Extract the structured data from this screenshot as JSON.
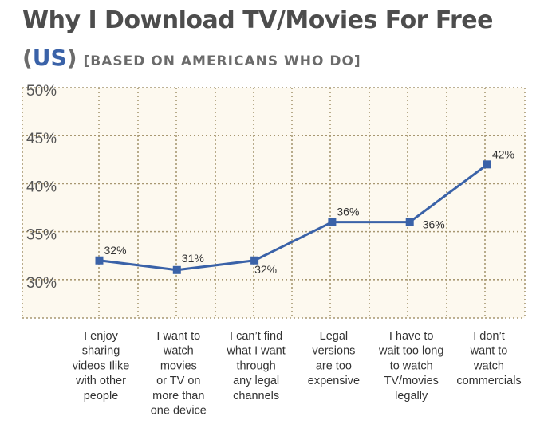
{
  "title": "Why I Download TV/Movies For Free",
  "subtitle": {
    "open_paren": "(",
    "region": "US",
    "close_paren": ")",
    "note": "[BASED ON AMERICANS WHO DO]"
  },
  "colors": {
    "series": "#3a62a8",
    "plot_background": "#fdf9ef",
    "grid": "#a89872",
    "title": "#4d4d4d"
  },
  "chart_data": {
    "type": "line",
    "categories": [
      "I enjoy sharing videos Ilike with other people",
      "I want to watch movies or TV on more than one device",
      "I can’t find what I want through any legal channels",
      "Legal versions are too expensive",
      "I have to wait too long to watch TV/movies legally",
      "I don’t want to watch commercials"
    ],
    "category_lines": [
      [
        "I enjoy",
        "sharing",
        "videos Ilike",
        "with other",
        "people"
      ],
      [
        "I want to",
        "watch",
        "movies",
        "or TV on",
        "more than",
        "one device"
      ],
      [
        "I can’t find",
        "what I want",
        "through",
        "any legal",
        "channels"
      ],
      [
        "Legal",
        "versions",
        "are too",
        "expensive"
      ],
      [
        "I have to",
        "wait too long",
        "to watch",
        "TV/movies",
        "legally"
      ],
      [
        "I don’t",
        "want to",
        "watch",
        "commercials"
      ]
    ],
    "series": [
      {
        "values": [
          32,
          31,
          32,
          36,
          36,
          42
        ]
      }
    ],
    "data_labels": [
      "32%",
      "31%",
      "32%",
      "36%",
      "36%",
      "42%"
    ],
    "y_ticks": [
      30,
      35,
      40,
      45,
      50
    ],
    "y_tick_labels": [
      "30%",
      "35%",
      "40%",
      "45%",
      "50%"
    ],
    "ylim": [
      26,
      50
    ],
    "grid": true,
    "legend": "none"
  }
}
